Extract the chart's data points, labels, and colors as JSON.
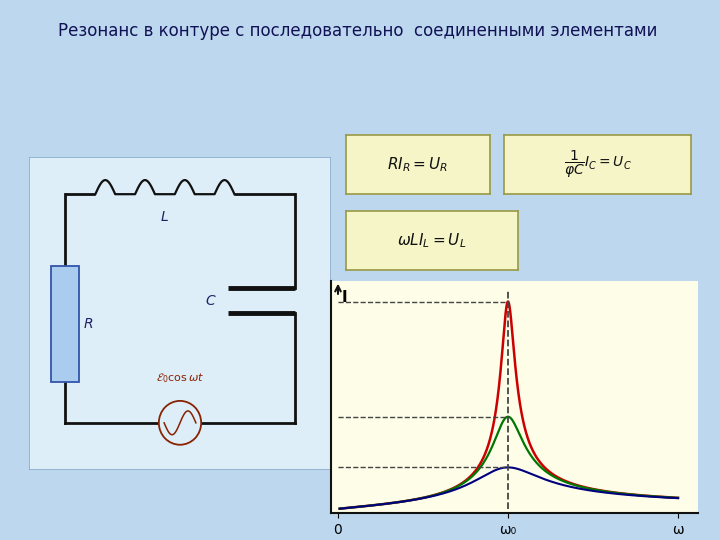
{
  "title": "Резонанс в контуре с последовательно  соединенными элементами",
  "title_fontsize": 12,
  "bg_color": "#bdd8ee",
  "circuit_bg": "#ddeef8",
  "plot_bg": "#fdfde8",
  "xlabel_0": "0",
  "xlabel_w0": "ω₀",
  "xlabel_w": "ω",
  "ylabel_I": "I",
  "omega0": 0.5,
  "omega_max": 1.0,
  "curves": [
    {
      "R": 0.04,
      "color": "#cc0000",
      "lw": 1.8
    },
    {
      "R": 0.09,
      "color": "#007700",
      "lw": 1.6
    },
    {
      "R": 0.2,
      "color": "#00007f",
      "lw": 1.5
    }
  ],
  "dashed_color": "#444444",
  "dashed_lw": 1.0,
  "eq_box_color": "#f5f5c8",
  "eq_box_edge": "#999944"
}
